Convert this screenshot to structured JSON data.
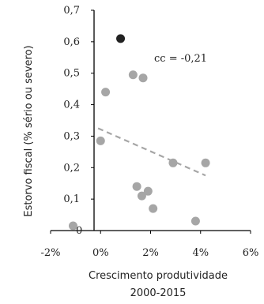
{
  "chart_data": {
    "type": "scatter",
    "xlabel_line1": "Crescimento produtividade",
    "xlabel_line2": "2000-2015",
    "ylabel": "Estorvo fiscal (% sério ou severo)",
    "xlim": [
      -0.02,
      0.06
    ],
    "ylim": [
      0,
      0.7
    ],
    "x_ticks": [
      {
        "value": -0.02,
        "label": "-2%"
      },
      {
        "value": 0.0,
        "label": "0%"
      },
      {
        "value": 0.02,
        "label": "2%"
      },
      {
        "value": 0.04,
        "label": "4%"
      },
      {
        "value": 0.06,
        "label": "6%"
      }
    ],
    "y_ticks": [
      {
        "value": 0.0,
        "label": "0"
      },
      {
        "value": 0.1,
        "label": "0,1"
      },
      {
        "value": 0.2,
        "label": "0,2"
      },
      {
        "value": 0.3,
        "label": "0,3"
      },
      {
        "value": 0.4,
        "label": "0,4"
      },
      {
        "value": 0.5,
        "label": "0,5"
      },
      {
        "value": 0.6,
        "label": "0,6"
      },
      {
        "value": 0.7,
        "label": "0,7"
      }
    ],
    "points": [
      {
        "x": -0.011,
        "y": 0.015
      },
      {
        "x": 0.002,
        "y": 0.44
      },
      {
        "x": 0.0,
        "y": 0.285
      },
      {
        "x": 0.013,
        "y": 0.495
      },
      {
        "x": 0.017,
        "y": 0.485
      },
      {
        "x": 0.0145,
        "y": 0.14
      },
      {
        "x": 0.0165,
        "y": 0.11
      },
      {
        "x": 0.019,
        "y": 0.125
      },
      {
        "x": 0.021,
        "y": 0.07
      },
      {
        "x": 0.029,
        "y": 0.215
      },
      {
        "x": 0.038,
        "y": 0.03
      },
      {
        "x": 0.042,
        "y": 0.215
      }
    ],
    "highlight_point": {
      "x": 0.008,
      "y": 0.61
    },
    "trendline": {
      "x_start": -0.001,
      "y_start": 0.325,
      "x_end": 0.042,
      "y_end": 0.175
    },
    "annotation": "cc = -0,21",
    "colors": {
      "points": "#a6a6a6",
      "highlight": "#222222",
      "trendline": "#a6a6a6",
      "axis": "#000000"
    }
  }
}
